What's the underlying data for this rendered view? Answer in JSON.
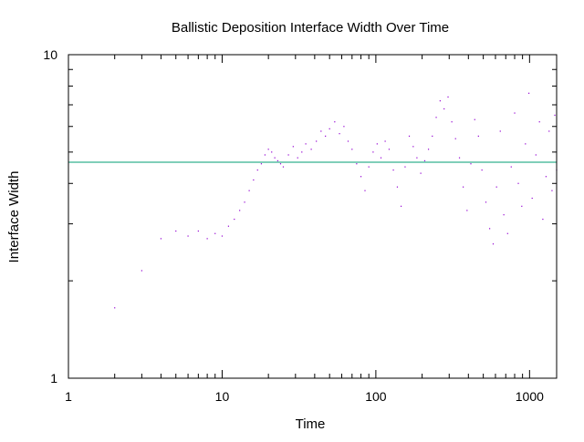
{
  "chart_data": {
    "type": "scatter",
    "title": "Ballistic Deposition Interface Width Over Time",
    "xlabel": "Time",
    "ylabel": "Interface Width",
    "xscale": "log",
    "yscale": "log",
    "xlim": [
      1,
      1500
    ],
    "ylim": [
      1,
      10
    ],
    "x_ticks": [
      1,
      10,
      100,
      1000
    ],
    "x_tick_labels": [
      "1",
      "10",
      "100",
      "1000"
    ],
    "y_ticks": [
      1,
      10
    ],
    "y_tick_labels": [
      "1",
      "10"
    ],
    "grid": false,
    "legend": "none",
    "series": [
      {
        "style": "dots",
        "color": "#9400d3",
        "x": [
          2,
          3,
          4,
          5,
          6,
          7,
          8,
          9,
          10,
          11,
          12,
          13,
          14,
          15,
          16,
          17,
          18,
          19,
          20,
          21,
          22,
          23,
          24,
          25,
          27,
          29,
          31,
          33,
          35,
          38,
          41,
          44,
          47,
          50,
          54,
          58,
          62,
          66,
          70,
          75,
          80,
          85,
          90,
          96,
          102,
          108,
          115,
          122,
          130,
          138,
          146,
          155,
          165,
          175,
          185,
          196,
          208,
          220,
          233,
          247,
          262,
          278,
          295,
          312,
          330,
          350,
          370,
          392,
          415,
          440,
          465,
          490,
          520,
          550,
          580,
          610,
          645,
          680,
          720,
          760,
          800,
          845,
          890,
          940,
          990,
          1040,
          1100,
          1160,
          1220,
          1280,
          1340,
          1400,
          1460,
          1500
        ],
        "y": [
          1.65,
          2.15,
          2.7,
          2.85,
          2.75,
          2.85,
          2.7,
          2.8,
          2.75,
          2.95,
          3.1,
          3.3,
          3.5,
          3.8,
          4.1,
          4.4,
          4.6,
          4.9,
          5.1,
          5.0,
          4.8,
          4.7,
          4.6,
          4.5,
          4.9,
          5.2,
          4.8,
          5.0,
          5.3,
          5.1,
          5.4,
          5.8,
          5.6,
          5.9,
          6.2,
          5.7,
          6.0,
          5.4,
          5.1,
          4.6,
          4.2,
          3.8,
          4.5,
          5.0,
          5.3,
          4.8,
          5.4,
          5.1,
          4.4,
          3.9,
          3.4,
          4.5,
          5.6,
          5.2,
          4.8,
          4.3,
          4.7,
          5.1,
          5.6,
          6.4,
          7.2,
          6.8,
          7.4,
          6.2,
          5.5,
          4.8,
          3.9,
          3.3,
          4.6,
          6.3,
          5.6,
          4.4,
          3.5,
          2.9,
          2.6,
          3.9,
          5.8,
          3.2,
          2.8,
          4.5,
          6.6,
          4.0,
          3.4,
          5.3,
          7.6,
          3.6,
          4.9,
          6.2,
          3.1,
          4.2,
          5.8,
          3.8,
          6.5,
          4.4
        ]
      },
      {
        "style": "line",
        "color": "#009e73",
        "x": [
          1,
          1500
        ],
        "y": [
          4.65,
          4.65
        ]
      }
    ]
  }
}
